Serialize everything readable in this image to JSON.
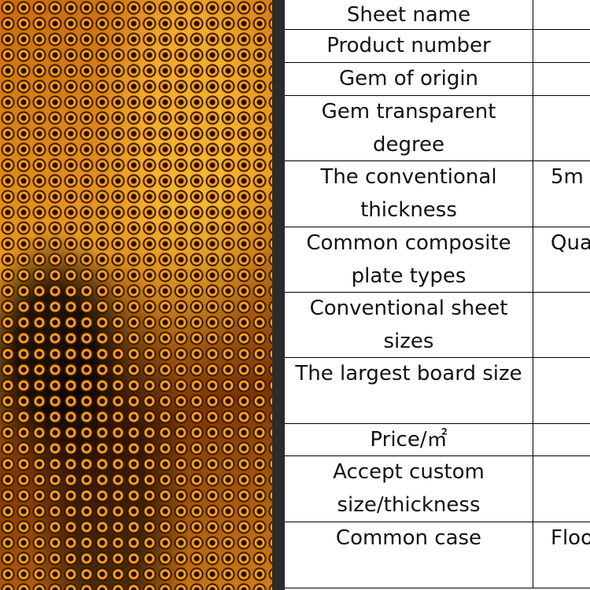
{
  "table": {
    "rows": [
      [
        "Sheet name"
      ],
      [
        "Product number"
      ],
      [
        "Gem of origin"
      ],
      [
        "Gem transparent degree"
      ],
      [
        "The conventional thickness",
        "5m"
      ],
      [
        "Common composite plate types",
        "Qua"
      ],
      [
        "Conventional sheet sizes"
      ],
      [
        "The largest board size"
      ],
      [
        "Price/㎡"
      ],
      [
        "Accept custom size/thickness"
      ],
      [
        "Common case",
        "Floo"
      ]
    ]
  }
}
